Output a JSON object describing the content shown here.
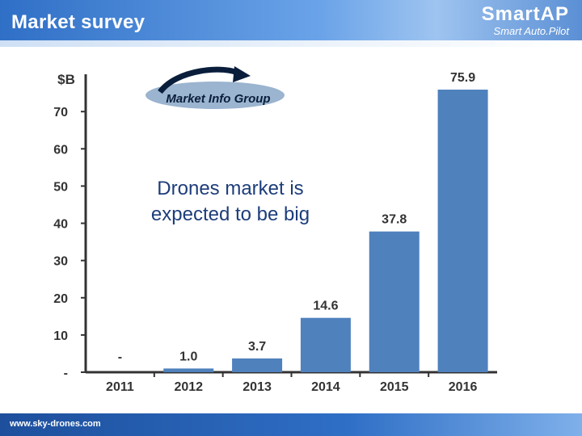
{
  "header": {
    "title": "Market survey"
  },
  "brand": {
    "name": "SmartAP",
    "subtitle": "Smart Auto.Pilot"
  },
  "logo": {
    "text": "Market Info Group"
  },
  "callout": {
    "line1": "Drones market is",
    "line2": "expected to be big"
  },
  "footer": {
    "url": "www.sky-drones.com"
  },
  "colors": {
    "bar": "#4f81bd",
    "header": "#2f6fc6",
    "footer": "#1d4f9c",
    "axis": "#333333"
  },
  "chart_data": {
    "type": "bar",
    "ylabel": "$B",
    "categories": [
      "2011",
      "2012",
      "2013",
      "2014",
      "2015",
      "2016"
    ],
    "values": [
      0,
      1.0,
      3.7,
      14.6,
      37.8,
      75.9
    ],
    "data_labels": [
      "-",
      "1.0",
      "3.7",
      "14.6",
      "37.8",
      "75.9"
    ],
    "ylim": [
      0,
      75.9
    ],
    "yticks": [
      0,
      10,
      20,
      30,
      40,
      50,
      60,
      70
    ],
    "ytick_labels": [
      "-",
      "10",
      "20",
      "30",
      "40",
      "50",
      "60",
      "70"
    ],
    "grid": false
  }
}
